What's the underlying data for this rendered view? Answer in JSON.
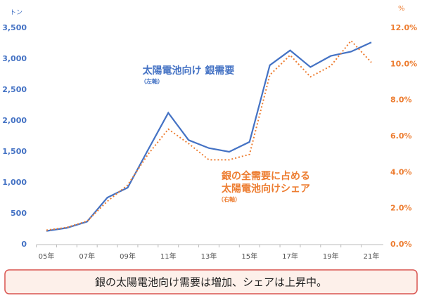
{
  "chart_data": {
    "type": "line",
    "y_unit": "トン",
    "y2_unit": "%",
    "categories": [
      "05年",
      null,
      "07年",
      null,
      "09年",
      null,
      "11年",
      null,
      "13年",
      null,
      "15年",
      null,
      "17年",
      null,
      "19年",
      null,
      "21年"
    ],
    "series": [
      {
        "name": "太陽電池向け 銀需要",
        "color": "#4472c4",
        "style": "solid",
        "axis": "y",
        "values": [
          220,
          270,
          370,
          760,
          920,
          1530,
          2130,
          1690,
          1560,
          1500,
          1660,
          2900,
          3140,
          2870,
          3050,
          3120,
          3270
        ]
      },
      {
        "name": "銀の全需要に占める太陽電池向けシェア",
        "color": "#ed7d31",
        "style": "dotted",
        "axis": "y2",
        "values": [
          0.8,
          0.95,
          1.3,
          2.4,
          3.3,
          5.0,
          6.4,
          5.6,
          4.7,
          4.7,
          5.0,
          9.4,
          10.5,
          9.3,
          9.9,
          11.3,
          10.1
        ]
      }
    ],
    "annotations": [
      {
        "lines": [
          "太陽電池向け 銀需要"
        ],
        "note": "（左軸）",
        "color": "#4472c4"
      },
      {
        "lines": [
          "銀の全需要に占める",
          "太陽電池向けシェア"
        ],
        "note": "（右軸）",
        "color": "#ed7d31"
      }
    ],
    "ylim": [
      0,
      3500
    ],
    "yticks": [
      0,
      500,
      {
        "value": 1000,
        "label": "1,000"
      },
      {
        "value": 1500,
        "label": "1,500"
      },
      {
        "value": 2000,
        "label": "2,000"
      },
      {
        "value": 2500,
        "label": "2,500"
      },
      {
        "value": 3000,
        "label": "3,000"
      },
      {
        "value": 3500,
        "label": "3,500"
      }
    ],
    "y2lim": [
      0,
      12
    ],
    "y2ticks": [
      {
        "value": 0,
        "label": "0.0%"
      },
      {
        "value": 2,
        "label": "2.0%"
      },
      {
        "value": 4,
        "label": "4.0%"
      },
      {
        "value": 6,
        "label": "6.0%"
      },
      {
        "value": 8,
        "label": "8.0%"
      },
      {
        "value": 10,
        "label": "10.0%"
      },
      {
        "value": 12,
        "label": "12.0%"
      }
    ],
    "summary": "銀の太陽電池向け需要は増加、シェアは上昇中。"
  }
}
